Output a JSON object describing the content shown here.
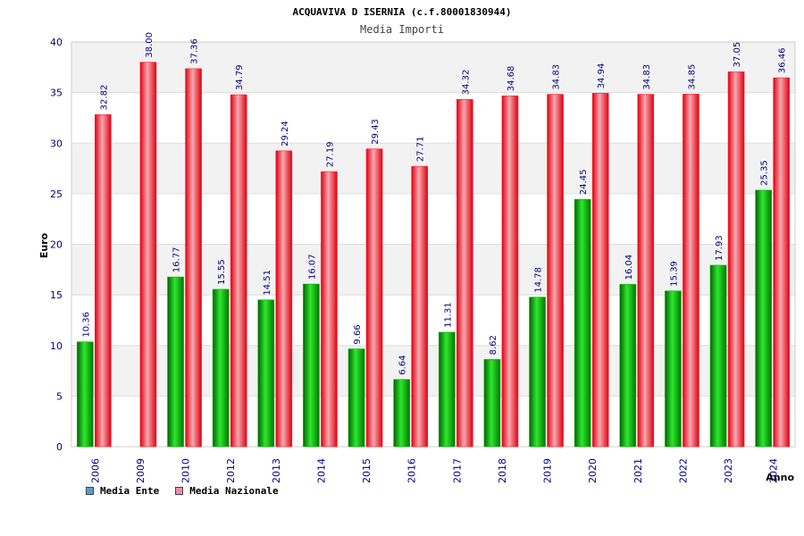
{
  "header": {
    "title": "ACQUAVIVA D ISERNIA (c.f.80001830944)",
    "subtitle": "Media Importi"
  },
  "legend": {
    "items": [
      {
        "label": "Media Ente",
        "color": "#5b9bd5"
      },
      {
        "label": "Media Nazionale",
        "color": "#e88fb4"
      }
    ]
  },
  "colors": {
    "series_ente": "#00b000",
    "series_nazionale": "#ff1a2a",
    "value_label": "#000080",
    "tick_label": "#000080",
    "band": "#f2f2f2"
  },
  "chart_data": {
    "type": "bar",
    "xlabel": "Anno",
    "ylabel": "Euro",
    "ylim": [
      0,
      40
    ],
    "yticks": [
      0,
      5,
      10,
      15,
      20,
      25,
      30,
      35,
      40
    ],
    "grid": true,
    "legend_position": "bottom-left",
    "categories": [
      "2006",
      "2009",
      "2010",
      "2012",
      "2013",
      "2014",
      "2015",
      "2016",
      "2017",
      "2018",
      "2019",
      "2020",
      "2021",
      "2022",
      "2023",
      "2024"
    ],
    "series": [
      {
        "name": "Media Ente",
        "values": [
          10.36,
          null,
          16.77,
          15.55,
          14.51,
          16.07,
          9.66,
          6.64,
          11.31,
          8.62,
          14.78,
          24.45,
          16.04,
          15.39,
          17.93,
          25.35
        ],
        "labels": [
          "10.36",
          "",
          "16.77",
          "15.55",
          "14.51",
          "16.07",
          "9.66",
          "6.64",
          "11.31",
          "8.62",
          "14.78",
          "24.45",
          "16.04",
          "15.39",
          "17.93",
          "25.35"
        ]
      },
      {
        "name": "Media Nazionale",
        "values": [
          32.82,
          38.0,
          37.36,
          34.79,
          29.24,
          27.19,
          29.43,
          27.71,
          34.32,
          34.68,
          34.83,
          34.94,
          34.83,
          34.85,
          37.05,
          36.46
        ],
        "labels": [
          "32.82",
          "38.00",
          "37.36",
          "34.79",
          "29.24",
          "27.19",
          "29.43",
          "27.71",
          "34.32",
          "34.68",
          "34.83",
          "34.94",
          "34.83",
          "34.85",
          "37.05",
          "36.46"
        ]
      }
    ]
  }
}
